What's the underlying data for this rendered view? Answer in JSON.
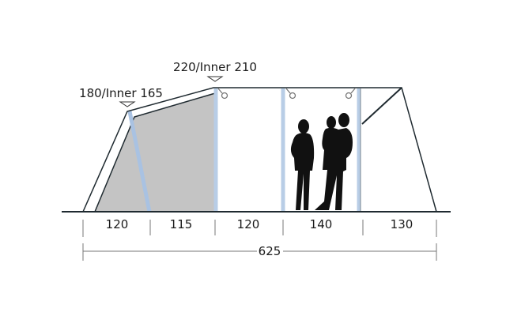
{
  "heights": {
    "front": "180/Inner 165",
    "peak": "220/Inner 210"
  },
  "sections": [
    "120",
    "115",
    "120",
    "140",
    "130"
  ],
  "total_length": "625",
  "colors": {
    "outline": "#1f2a30",
    "inner_tent": "#c4c4c4",
    "pole": "#b8cde6",
    "silhouette": "#111111"
  }
}
